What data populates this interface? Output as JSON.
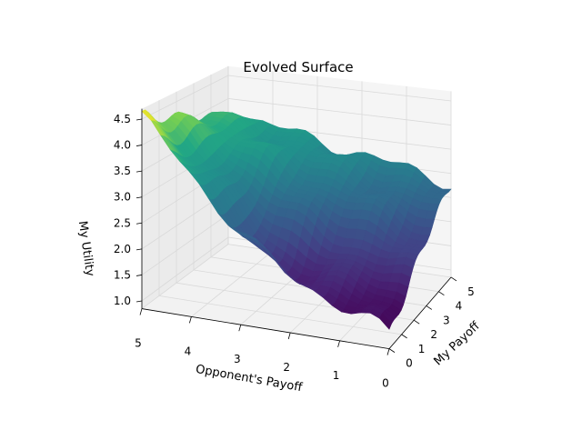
{
  "chart_data": {
    "type": "surface3d",
    "title": "Evolved Surface",
    "xlabel": "My Payoff",
    "ylabel": "Opponent's Payoff",
    "zlabel": "My Utility",
    "x_ticks": [
      "0",
      "1",
      "2",
      "3",
      "4",
      "5"
    ],
    "y_ticks": [
      "5",
      "4",
      "3",
      "2",
      "1",
      "0"
    ],
    "z_ticks": [
      "1.0",
      "1.5",
      "2.0",
      "2.5",
      "3.0",
      "3.5",
      "4.0",
      "4.5"
    ],
    "xlim": [
      0,
      5
    ],
    "ylim": [
      0,
      5
    ],
    "zlim": [
      0.85,
      4.7
    ],
    "colormap": "viridis",
    "grid": true,
    "corner_values": {
      "my0_opp0": 1.2,
      "my5_opp0": 2.8,
      "my5_opp5": 3.7,
      "my0_opp5": 4.6
    },
    "minimum": {
      "my_payoff": 1.0,
      "opp_payoff": 2.5,
      "utility": 0.9
    }
  }
}
